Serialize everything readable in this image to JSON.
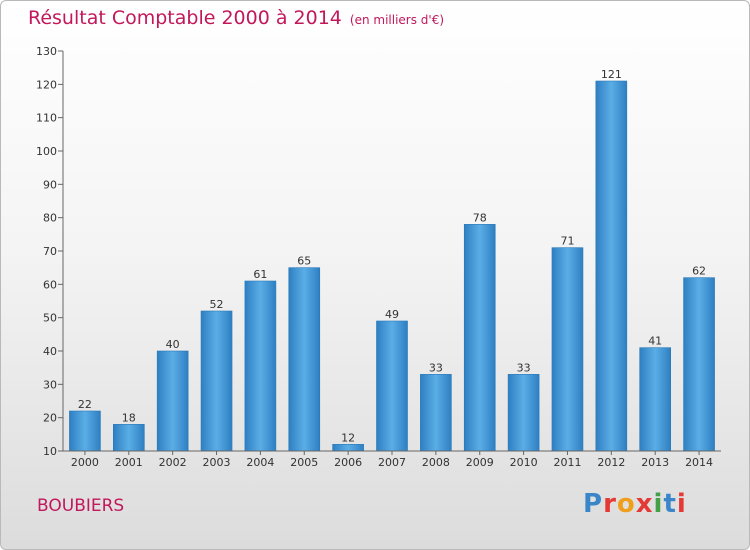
{
  "chart_data": {
    "type": "bar",
    "title": "Résultat Comptable 2000 à 2014",
    "subtitle": "(en milliers d'€)",
    "categories": [
      "2000",
      "2001",
      "2002",
      "2003",
      "2004",
      "2005",
      "2006",
      "2007",
      "2008",
      "2009",
      "2010",
      "2011",
      "2012",
      "2013",
      "2014"
    ],
    "values": [
      22,
      18,
      40,
      52,
      61,
      65,
      12,
      49,
      33,
      78,
      33,
      71,
      121,
      41,
      62
    ],
    "ylim": [
      10,
      130
    ],
    "yticks": [
      10,
      20,
      30,
      40,
      50,
      60,
      70,
      80,
      90,
      100,
      110,
      120,
      130
    ],
    "grid": false,
    "xlabel": "",
    "ylabel": ""
  },
  "location": "BOUBIERS",
  "logo": {
    "text": "Proxiti",
    "colors": [
      "#3a86c8",
      "#e53935",
      "#ef9f1b",
      "#e53935",
      "#43a047",
      "#3a86c8",
      "#e53935"
    ]
  },
  "colors": {
    "bar": "#3d95d8",
    "accent": "#c2185b"
  }
}
